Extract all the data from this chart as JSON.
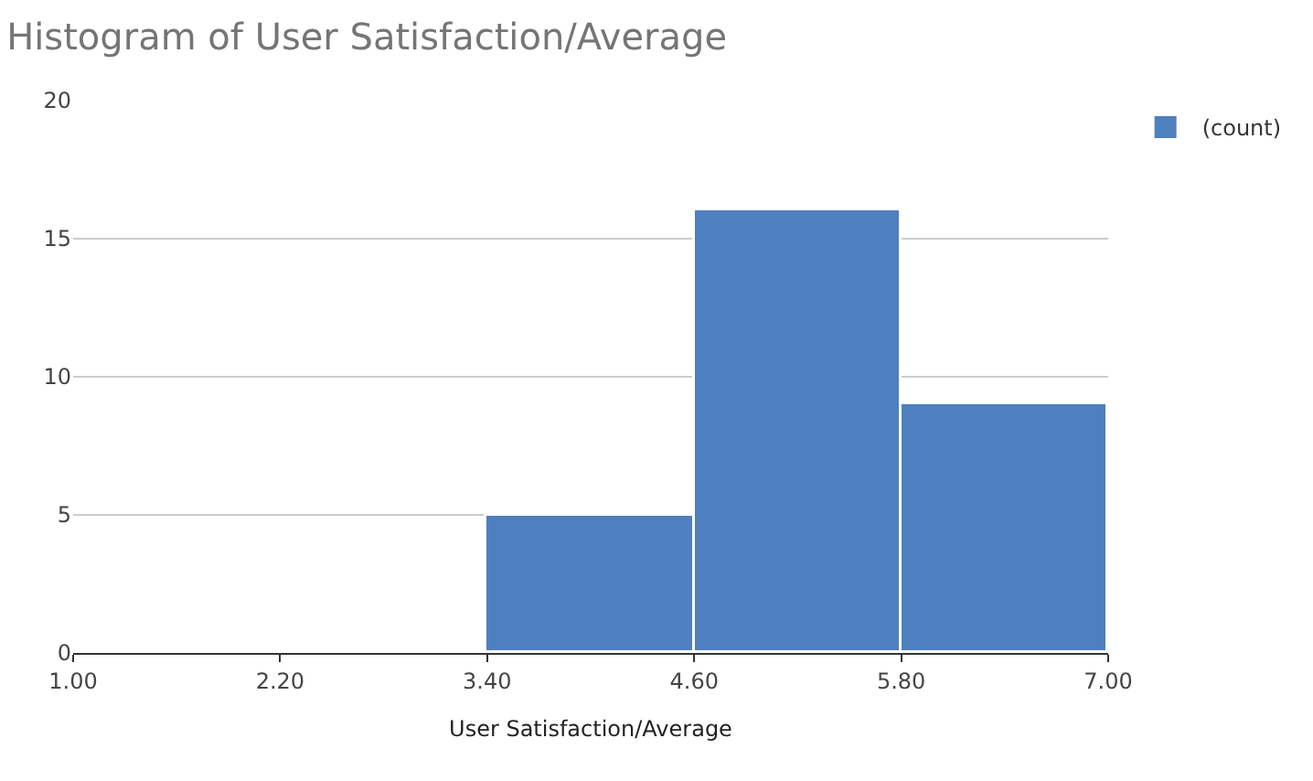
{
  "chart_data": {
    "type": "histogram",
    "title": "Histogram of User Satisfaction/Average",
    "xlabel": "User Satisfaction/Average",
    "bins": [
      1.0,
      2.2,
      3.4,
      4.6,
      5.8,
      7.0
    ],
    "series": [
      {
        "name": "(count)",
        "color": "#4e7fbf",
        "values": [
          0,
          0,
          5,
          16,
          9
        ]
      }
    ],
    "xlim": [
      1.0,
      7.0
    ],
    "xticks": [
      {
        "value": 1.0,
        "label": "1.00"
      },
      {
        "value": 2.2,
        "label": "2.20"
      },
      {
        "value": 3.4,
        "label": "3.40"
      },
      {
        "value": 4.6,
        "label": "4.60"
      },
      {
        "value": 5.8,
        "label": "5.80"
      },
      {
        "value": 7.0,
        "label": "7.00"
      }
    ],
    "ylim": [
      0,
      20
    ],
    "yticks": [
      0,
      5,
      10,
      15,
      20
    ],
    "grid": "y",
    "legend": "top right"
  }
}
